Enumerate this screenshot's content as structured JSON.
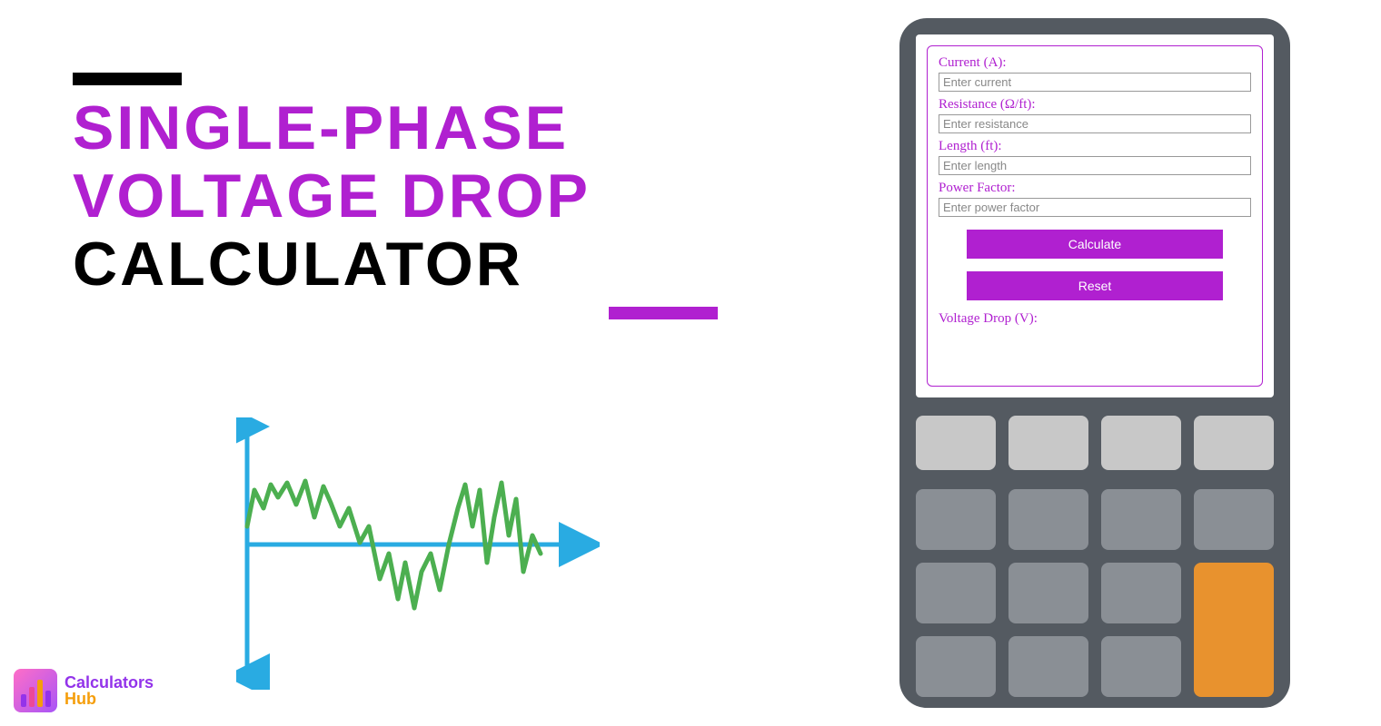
{
  "title": {
    "line1": "Single-Phase",
    "line2": "Voltage Drop",
    "line3": "Calculator",
    "line1_color": "#b020d0",
    "line2_color": "#b020d0",
    "line3_color": "#000000",
    "fontsize": 68,
    "top_bar_color": "#000000",
    "bottom_bar_color": "#b020d0"
  },
  "form": {
    "border_color": "#b020d0",
    "label_color": "#b020d0",
    "fields": {
      "current": {
        "label": "Current (A):",
        "placeholder": "Enter current"
      },
      "resistance": {
        "label": "Resistance (Ω/ft):",
        "placeholder": "Enter resistance"
      },
      "length": {
        "label": "Length (ft):",
        "placeholder": "Enter length"
      },
      "power_factor": {
        "label": "Power Factor:",
        "placeholder": "Enter power factor"
      }
    },
    "buttons": {
      "calculate": "Calculate",
      "reset": "Reset",
      "bg_color": "#b020d0",
      "text_color": "#ffffff"
    },
    "result_label": "Voltage Drop (V):"
  },
  "calculator_device": {
    "body_color": "#545a61",
    "screen_color": "#ffffff",
    "keypad": {
      "rows": 4,
      "cols": 4,
      "top_row_color": "#c8c8c8",
      "key_color": "#8a8f95",
      "accent_key_color": "#e8922e",
      "accent_key_position": "row3-4_col4"
    }
  },
  "chart": {
    "type": "waveform",
    "axis_color": "#29abe2",
    "axis_width": 5,
    "wave_color": "#4caf50",
    "wave_width": 5,
    "x_range": [
      0,
      340
    ],
    "y_center": 140,
    "y_amplitude": 80,
    "wave_points": [
      [
        12,
        120
      ],
      [
        20,
        80
      ],
      [
        30,
        100
      ],
      [
        38,
        74
      ],
      [
        46,
        88
      ],
      [
        56,
        72
      ],
      [
        66,
        96
      ],
      [
        76,
        70
      ],
      [
        86,
        110
      ],
      [
        96,
        76
      ],
      [
        104,
        94
      ],
      [
        114,
        120
      ],
      [
        124,
        100
      ],
      [
        136,
        138
      ],
      [
        146,
        120
      ],
      [
        158,
        178
      ],
      [
        168,
        150
      ],
      [
        178,
        200
      ],
      [
        186,
        160
      ],
      [
        196,
        210
      ],
      [
        204,
        170
      ],
      [
        214,
        150
      ],
      [
        224,
        190
      ],
      [
        234,
        140
      ],
      [
        244,
        100
      ],
      [
        252,
        74
      ],
      [
        260,
        120
      ],
      [
        268,
        80
      ],
      [
        276,
        160
      ],
      [
        284,
        110
      ],
      [
        292,
        72
      ],
      [
        300,
        130
      ],
      [
        308,
        90
      ],
      [
        316,
        170
      ],
      [
        326,
        130
      ],
      [
        335,
        150
      ]
    ]
  },
  "logo": {
    "text1": "Calculators",
    "text2": "Hub",
    "text1_color": "#9333ea",
    "text2_color": "#f59e0b",
    "icon_gradient": [
      "#ff6ec7",
      "#a855f7"
    ],
    "bar_colors": [
      "#9333ea",
      "#ec4899",
      "#f59e0b",
      "#9333ea"
    ]
  }
}
